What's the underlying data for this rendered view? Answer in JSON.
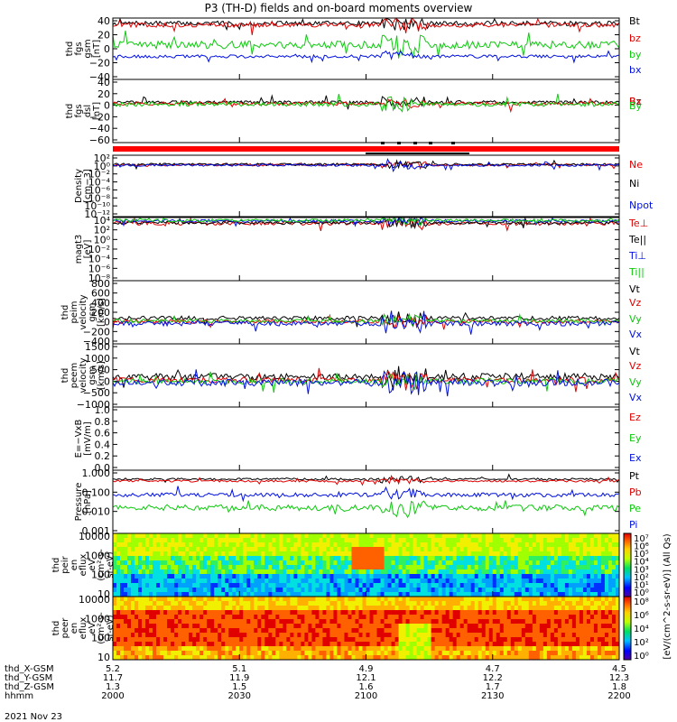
{
  "title": "P3 (TH-D) fields and on-board moments overview",
  "date_label": "2021 Nov 23",
  "colors": {
    "black": "#000000",
    "red": "#e00000",
    "green": "#10c810",
    "blue": "#0010e0",
    "status_red": "#ff0000"
  },
  "chart_data": [
    {
      "id": "fgs_gsm",
      "type": "line",
      "ylabel": [
        "thd",
        "fgs",
        "gsm",
        "[nT]"
      ],
      "yticks": [
        "40",
        "20",
        "0",
        "−20",
        "−40"
      ],
      "ylim": [
        -40,
        40
      ],
      "series": [
        {
          "name": "Bt",
          "color": "#000000",
          "base": 33,
          "amp": 3
        },
        {
          "name": "bz",
          "color": "#e00000",
          "base": 31,
          "amp": 3
        },
        {
          "name": "by",
          "color": "#10c810",
          "base": 5,
          "amp": 5
        },
        {
          "name": "bx",
          "color": "#0010e0",
          "base": -10,
          "amp": 2
        }
      ]
    },
    {
      "id": "fgs_dsl",
      "type": "line",
      "ylabel": [
        "thd",
        "fgs",
        "dsl",
        "[nT]"
      ],
      "yticks": [
        "40",
        "20",
        "0",
        "−20",
        "−40",
        "−60"
      ],
      "ylim": [
        -70,
        40
      ],
      "series": [
        {
          "name": "Bz",
          "color": "#000000",
          "base": 0,
          "amp": 3
        },
        {
          "name": "Bx",
          "color": "#e00000",
          "base": -2,
          "amp": 3
        },
        {
          "name": "By",
          "color": "#10c810",
          "base": -3,
          "amp": 4
        }
      ]
    },
    {
      "id": "density",
      "type": "line",
      "ylabel": [
        "Density",
        "[cm−3]"
      ],
      "yticks": [
        "10²",
        "10⁰",
        "10⁻²",
        "10⁻⁴",
        "10⁻⁶",
        "10⁻⁸",
        "10⁻¹⁰",
        "10⁻¹²"
      ],
      "ylim": [
        -13,
        3
      ],
      "scale": "log",
      "series": [
        {
          "name": "Ne",
          "color": "#e00000",
          "base": 0.5,
          "amp": 0.3
        },
        {
          "name": "Ni",
          "color": "#000000",
          "base": 0.6,
          "amp": 0.3
        },
        {
          "name": "Npot",
          "color": "#0010e0",
          "base": 0.4,
          "amp": 0.3
        }
      ]
    },
    {
      "id": "temperature",
      "type": "line",
      "ylabel": [
        "magt3",
        "[eV]"
      ],
      "yticks": [
        "10⁴",
        "10²",
        "10⁰",
        "10⁻²",
        "10⁻⁴",
        "10⁻⁶",
        "10⁻⁸"
      ],
      "ylim": [
        -9,
        4
      ],
      "scale": "log",
      "series": [
        {
          "name": "Te⊥",
          "color": "#e00000",
          "base": 2.8,
          "amp": 0.4
        },
        {
          "name": "Te||",
          "color": "#000000",
          "base": 2.9,
          "amp": 0.3
        },
        {
          "name": "Ti⊥",
          "color": "#0010e0",
          "base": 3.3,
          "amp": 0.3
        },
        {
          "name": "Ti||",
          "color": "#10c810",
          "base": 3.4,
          "amp": 0.3
        }
      ]
    },
    {
      "id": "peim_velocity",
      "type": "line",
      "ylabel": [
        "thd",
        "peim",
        "velocity",
        "gsm",
        "[km/s]"
      ],
      "yticks": [
        "800",
        "600",
        "400",
        "200",
        "0",
        "−200",
        "−400"
      ],
      "ylim": [
        -450,
        850
      ],
      "series": [
        {
          "name": "Vt",
          "color": "#000000",
          "base": 80,
          "amp": 40
        },
        {
          "name": "Vz",
          "color": "#e00000",
          "base": 10,
          "amp": 40
        },
        {
          "name": "Vy",
          "color": "#10c810",
          "base": 20,
          "amp": 40
        },
        {
          "name": "Vx",
          "color": "#0010e0",
          "base": -30,
          "amp": 50
        }
      ]
    },
    {
      "id": "peem_velocity",
      "type": "line",
      "ylabel": [
        "thd",
        "peem",
        "velocity",
        "gsm",
        "[km/s]"
      ],
      "yticks": [
        "1500",
        "1000",
        "500",
        "0",
        "−500",
        "−1000"
      ],
      "ylim": [
        -1100,
        1600
      ],
      "series": [
        {
          "name": "Vt",
          "color": "#000000",
          "base": 200,
          "amp": 150
        },
        {
          "name": "Vz",
          "color": "#e00000",
          "base": 50,
          "amp": 120
        },
        {
          "name": "Vy",
          "color": "#10c810",
          "base": 0,
          "amp": 120
        },
        {
          "name": "Vx",
          "color": "#0010e0",
          "base": -60,
          "amp": 150
        }
      ]
    },
    {
      "id": "efield",
      "type": "line",
      "ylabel": [
        "E=−VxB",
        "[mV/m]"
      ],
      "yticks": [
        "1.0",
        "0.8",
        "0.6",
        "0.4",
        "0.2",
        "0.0"
      ],
      "ylim": [
        0,
        1
      ],
      "series": [
        {
          "name": "Ez",
          "color": "#e00000"
        },
        {
          "name": "Ey",
          "color": "#10c810"
        },
        {
          "name": "Ex",
          "color": "#0010e0"
        }
      ]
    },
    {
      "id": "pressure",
      "type": "line",
      "ylabel": [
        "Pressure",
        "[nPa]"
      ],
      "yticks": [
        "1.000",
        "0.100",
        "0.010",
        "0.001"
      ],
      "ylim": [
        -3,
        0.2
      ],
      "scale": "log",
      "series": [
        {
          "name": "Pt",
          "color": "#000000",
          "base": -0.25,
          "amp": 0.05
        },
        {
          "name": "Pb",
          "color": "#e00000",
          "base": -0.35,
          "amp": 0.05
        },
        {
          "name": "Pe",
          "color": "#10c810",
          "base": -1.7,
          "amp": 0.15
        },
        {
          "name": "Pi",
          "color": "#0010e0",
          "base": -1.05,
          "amp": 0.1
        }
      ]
    },
    {
      "id": "peir_spectrogram",
      "type": "heatmap",
      "ylabel": [
        "thd",
        "peir",
        "en",
        "eflux",
        "eV",
        "(cm²-s-",
        "sr-eV)"
      ],
      "yticks": [
        "10000",
        "1000",
        "100",
        "10"
      ],
      "ylim": [
        5,
        30000
      ],
      "scale": "log"
    },
    {
      "id": "peer_spectrogram",
      "type": "heatmap",
      "ylabel": [
        "thd",
        "peer",
        "en",
        "eflux",
        "eV",
        "(cm²-s-",
        "sr-eV)"
      ],
      "yticks": [
        "10000",
        "1000",
        "100",
        "10"
      ],
      "ylim": [
        5,
        30000
      ],
      "scale": "log"
    }
  ],
  "colorbar": {
    "label": "[eV/(cm^2-s-sr-eV)] (All Qs)",
    "ticks_top": [
      "10⁷",
      "10⁶",
      "10⁵",
      "10⁴",
      "10³",
      "10²",
      "10¹",
      "10⁰"
    ],
    "ticks_bottom": [
      "10⁸",
      "10⁶",
      "10⁴",
      "10²",
      "10⁰"
    ]
  },
  "x_axis": {
    "rows": [
      {
        "label": "thd_X-GSM",
        "values": [
          "5.2",
          "5.1",
          "4.9",
          "4.7",
          "4.5"
        ]
      },
      {
        "label": "thd_Y-GSM",
        "values": [
          "11.7",
          "11.9",
          "12.1",
          "12.2",
          "12.3"
        ]
      },
      {
        "label": "thd_Z-GSM",
        "values": [
          "1.3",
          "1.5",
          "1.6",
          "1.7",
          "1.8"
        ]
      },
      {
        "label": "hhmm",
        "values": [
          "2000",
          "2030",
          "2100",
          "2130",
          "2200"
        ]
      }
    ]
  }
}
